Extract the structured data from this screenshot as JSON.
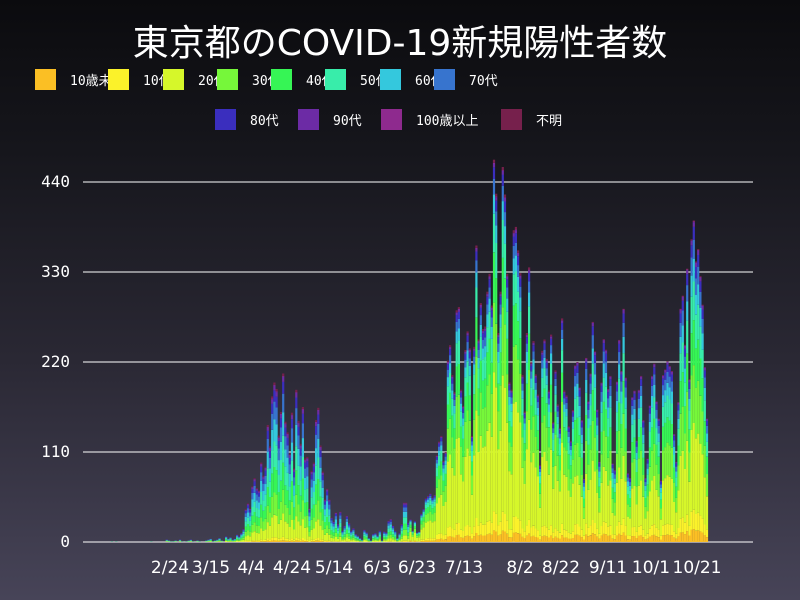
{
  "title": "東京都のCOVID-19新規陽性者数",
  "legend": [
    {
      "label": "10歳未満",
      "color": "#fbbf24"
    },
    {
      "label": "10代",
      "color": "#fbf22a"
    },
    {
      "label": "20代",
      "color": "#d6f72a"
    },
    {
      "label": "30代",
      "color": "#76f73a"
    },
    {
      "label": "40代",
      "color": "#36f555"
    },
    {
      "label": "50代",
      "color": "#38edaa"
    },
    {
      "label": "60代",
      "color": "#34c8dd"
    },
    {
      "label": "70代",
      "color": "#3774ce"
    },
    {
      "label": "80代",
      "color": "#3a2ebe"
    },
    {
      "label": "90代",
      "color": "#6c2ba5"
    },
    {
      "label": "100歳以上",
      "color": "#8e2a8e"
    },
    {
      "label": "不明",
      "color": "#76204c"
    }
  ],
  "chart_data": {
    "type": "bar",
    "stacked": true,
    "title": "東京都のCOVID-19新規陽性者数",
    "xlabel": "",
    "ylabel": "",
    "ylim": [
      0,
      470
    ],
    "yticks": [
      0,
      110,
      220,
      330,
      440
    ],
    "xticks": [
      "2/24",
      "3/15",
      "4/4",
      "4/24",
      "5/14",
      "6/3",
      "6/23",
      "7/13",
      "8/2",
      "8/22",
      "9/11",
      "10/1",
      "10/21"
    ],
    "grid": "horizontal",
    "legend_position": "top",
    "series_names": [
      "10歳未満",
      "10代",
      "20代",
      "30代",
      "40代",
      "50代",
      "60代",
      "70代",
      "80代",
      "90代",
      "100歳以上",
      "不明"
    ],
    "start_date": "1/24",
    "daily_totals": [
      0,
      0,
      0,
      0,
      1,
      0,
      1,
      0,
      0,
      0,
      0,
      0,
      0,
      0,
      0,
      0,
      0,
      0,
      0,
      0,
      0,
      0,
      1,
      0,
      0,
      0,
      0,
      0,
      0,
      3,
      2,
      1,
      1,
      2,
      0,
      3,
      1,
      0,
      1,
      2,
      3,
      1,
      0,
      2,
      1,
      0,
      0,
      2,
      3,
      4,
      1,
      2,
      3,
      5,
      2,
      0,
      7,
      4,
      6,
      3,
      4,
      9,
      7,
      11,
      16,
      40,
      47,
      41,
      68,
      78,
      66,
      63,
      97,
      81,
      92,
      143,
      117,
      178,
      195,
      187,
      130,
      159,
      206,
      147,
      134,
      108,
      158,
      90,
      186,
      148,
      120,
      165,
      102,
      104,
      41,
      87,
      97,
      149,
      164,
      118,
      86,
      52,
      65,
      52,
      30,
      25,
      36,
      22,
      37,
      14,
      20,
      32,
      23,
      14,
      17,
      10,
      8,
      5,
      3,
      15,
      12,
      5,
      2,
      10,
      11,
      8,
      14,
      2,
      13,
      12,
      26,
      28,
      20,
      14,
      5,
      11,
      22,
      48,
      48,
      24,
      28,
      14,
      26,
      12,
      13,
      35,
      41,
      54,
      57,
      60,
      55,
      58,
      107,
      124,
      131,
      100,
      111,
      224,
      243,
      206,
      185,
      286,
      290,
      188,
      168,
      237,
      260,
      239,
      131,
      241,
      366,
      250,
      295,
      263,
      266,
      309,
      331,
      292,
      472,
      430,
      258,
      309,
      463,
      429,
      331,
      197,
      188,
      385,
      389,
      360,
      332,
      206,
      161,
      258,
      339,
      222,
      248,
      207,
      182,
      95,
      236,
      250,
      226,
      187,
      256,
      148,
      212,
      170,
      141,
      276,
      187,
      181,
      143,
      125,
      163,
      216,
      220,
      189,
      149,
      77,
      225,
      172,
      206,
      269,
      233,
      162,
      98,
      195,
      248,
      235,
      187,
      203,
      96,
      88,
      196,
      247,
      209,
      285,
      201,
      84,
      78,
      177,
      185,
      124,
      186,
      203,
      149,
      78,
      102,
      167,
      203,
      218,
      172,
      151,
      75,
      204,
      211,
      221,
      215,
      209,
      132,
      98,
      171,
      285,
      301,
      241,
      334,
      199,
      370,
      393,
      343,
      358,
      325,
      290,
      214,
      151
    ]
  },
  "y_axis": {
    "ticks": [
      "440",
      "330",
      "220",
      "110",
      "0"
    ]
  },
  "x_axis": {
    "ticks": [
      "2/24",
      "3/15",
      "4/4",
      "4/24",
      "5/14",
      "6/3",
      "6/23",
      "7/13",
      "8/2",
      "8/22",
      "9/11",
      "10/1",
      "10/21"
    ]
  }
}
